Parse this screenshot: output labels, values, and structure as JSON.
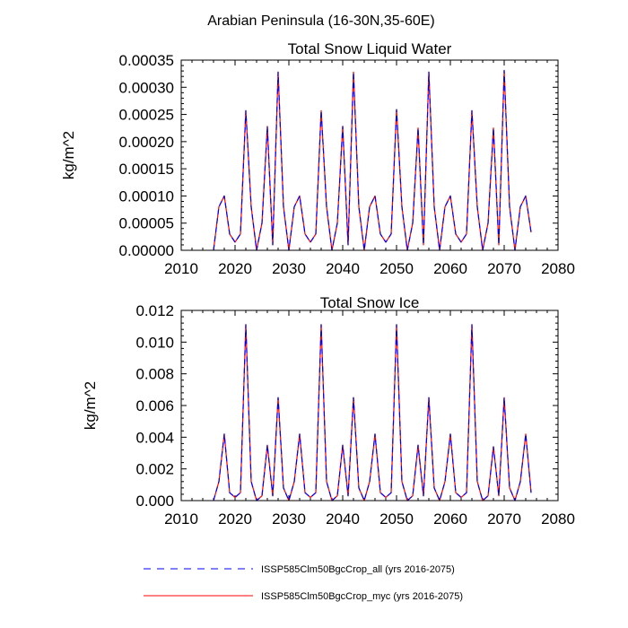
{
  "figure": {
    "suptitle": "Arabian Peninsula (16-30N,35-60E)"
  },
  "legend": {
    "placement": "bottom-center",
    "entries": [
      {
        "label": "ISSP585Clm50BgcCrop_all (yrs 2016-2075)",
        "color": "#0000ff",
        "style": "dashed"
      },
      {
        "label": "ISSP585Clm50BgcCrop_myc (yrs 2016-2075)",
        "color": "#ff0000",
        "style": "solid"
      }
    ]
  },
  "chart_data": [
    {
      "type": "line",
      "title": "Total Snow Liquid Water",
      "xlabel": "",
      "ylabel": "kg/m^2",
      "xlim": [
        2010,
        2080
      ],
      "ylim": [
        0,
        0.00035
      ],
      "xticks": [
        2010,
        2020,
        2030,
        2040,
        2050,
        2060,
        2070,
        2080
      ],
      "yticks": [
        0,
        5e-05,
        0.0001,
        0.00015,
        0.0002,
        0.00025,
        0.0003,
        0.00035
      ],
      "ytick_labels": [
        "0.00000",
        "0.00005",
        "0.00010",
        "0.00015",
        "0.00020",
        "0.00025",
        "0.00030",
        "0.00035"
      ],
      "grid": false,
      "x": [
        2016,
        2017,
        2018,
        2019,
        2020,
        2021,
        2022,
        2023,
        2024,
        2025,
        2026,
        2027,
        2028,
        2029,
        2030,
        2031,
        2032,
        2033,
        2034,
        2035,
        2036,
        2037,
        2038,
        2039,
        2040,
        2041,
        2042,
        2043,
        2044,
        2045,
        2046,
        2047,
        2048,
        2049,
        2050,
        2051,
        2052,
        2053,
        2054,
        2055,
        2056,
        2057,
        2058,
        2059,
        2060,
        2061,
        2062,
        2063,
        2064,
        2065,
        2066,
        2067,
        2068,
        2069,
        2070,
        2071,
        2072,
        2073,
        2074,
        2075
      ],
      "series": [
        {
          "name": "ISSP585Clm50BgcCrop_all (yrs 2016-2075)",
          "color": "#0000ff",
          "style": "dashed",
          "values": [
            0,
            8e-05,
            0.0001,
            3e-05,
            1.5e-05,
            3e-05,
            0.000257,
            8e-05,
            0,
            5e-05,
            0.000228,
            1e-05,
            0.000328,
            8e-05,
            0,
            8e-05,
            0.0001,
            3e-05,
            1.5e-05,
            3e-05,
            0.000257,
            8e-05,
            0,
            5e-05,
            0.000228,
            1e-05,
            0.000328,
            8e-05,
            0,
            8e-05,
            0.0001,
            3e-05,
            1.5e-05,
            3e-05,
            0.000259,
            8e-05,
            0,
            5e-05,
            0.000225,
            1e-05,
            0.000328,
            8e-05,
            0,
            8e-05,
            0.0001,
            3e-05,
            1.5e-05,
            3e-05,
            0.000257,
            8e-05,
            0,
            5e-05,
            0.000225,
            1e-05,
            0.000331,
            8e-05,
            0,
            8e-05,
            0.0001,
            3.3e-05
          ]
        },
        {
          "name": "ISSP585Clm50BgcCrop_myc (yrs 2016-2075)",
          "color": "#ff0000",
          "style": "solid",
          "values": [
            0,
            8e-05,
            0.0001,
            3e-05,
            1.5e-05,
            3e-05,
            0.000257,
            8e-05,
            0,
            5e-05,
            0.000228,
            1e-05,
            0.000328,
            8e-05,
            0,
            8e-05,
            0.0001,
            3e-05,
            1.5e-05,
            3e-05,
            0.000257,
            8e-05,
            0,
            5e-05,
            0.000228,
            1e-05,
            0.000328,
            8e-05,
            0,
            8e-05,
            0.0001,
            3e-05,
            1.5e-05,
            3e-05,
            0.000259,
            8e-05,
            0,
            5e-05,
            0.000225,
            1e-05,
            0.000328,
            8e-05,
            0,
            8e-05,
            0.0001,
            3e-05,
            1.5e-05,
            3e-05,
            0.000257,
            8e-05,
            0,
            5e-05,
            0.000225,
            1e-05,
            0.000331,
            8e-05,
            0,
            8e-05,
            0.0001,
            3.3e-05
          ]
        }
      ]
    },
    {
      "type": "line",
      "title": "Total Snow Ice",
      "xlabel": "",
      "ylabel": "kg/m^2",
      "xlim": [
        2010,
        2080
      ],
      "ylim": [
        0,
        0.012
      ],
      "xticks": [
        2010,
        2020,
        2030,
        2040,
        2050,
        2060,
        2070,
        2080
      ],
      "yticks": [
        0,
        0.002,
        0.004,
        0.006,
        0.008,
        0.01,
        0.012
      ],
      "ytick_labels": [
        "0.000",
        "0.002",
        "0.004",
        "0.006",
        "0.008",
        "0.010",
        "0.012"
      ],
      "grid": false,
      "x": [
        2016,
        2017,
        2018,
        2019,
        2020,
        2021,
        2022,
        2023,
        2024,
        2025,
        2026,
        2027,
        2028,
        2029,
        2030,
        2031,
        2032,
        2033,
        2034,
        2035,
        2036,
        2037,
        2038,
        2039,
        2040,
        2041,
        2042,
        2043,
        2044,
        2045,
        2046,
        2047,
        2048,
        2049,
        2050,
        2051,
        2052,
        2053,
        2054,
        2055,
        2056,
        2057,
        2058,
        2059,
        2060,
        2061,
        2062,
        2063,
        2064,
        2065,
        2066,
        2067,
        2068,
        2069,
        2070,
        2071,
        2072,
        2073,
        2074,
        2075
      ],
      "series": [
        {
          "name": "ISSP585Clm50BgcCrop_all (yrs 2016-2075)",
          "color": "#0000ff",
          "style": "dashed",
          "values": [
            0,
            0.0012,
            0.0042,
            0.0005,
            0.0002,
            0.0005,
            0.0111,
            0.0012,
            0,
            0.0003,
            0.0035,
            0.0003,
            0.0065,
            0.0008,
            0,
            0.0012,
            0.0042,
            0.0005,
            0.0002,
            0.0005,
            0.0111,
            0.0012,
            0,
            0.0003,
            0.0035,
            0.0003,
            0.0065,
            0.0008,
            0,
            0.0012,
            0.0042,
            0.0005,
            0.0002,
            0.0005,
            0.0111,
            0.0012,
            0,
            0.0003,
            0.0035,
            0.0003,
            0.0065,
            0.0008,
            0,
            0.0012,
            0.0042,
            0.0005,
            0.0002,
            0.0005,
            0.0111,
            0.0012,
            0,
            0.0003,
            0.0034,
            0.0003,
            0.0065,
            0.0008,
            0,
            0.0012,
            0.0042,
            0.0005
          ]
        },
        {
          "name": "ISSP585Clm50BgcCrop_myc (yrs 2016-2075)",
          "color": "#ff0000",
          "style": "solid",
          "values": [
            0,
            0.0012,
            0.0042,
            0.0005,
            0.0002,
            0.0005,
            0.0111,
            0.0012,
            0,
            0.0003,
            0.0035,
            0.0003,
            0.0065,
            0.0008,
            0,
            0.0012,
            0.0042,
            0.0005,
            0.0002,
            0.0005,
            0.0111,
            0.0012,
            0,
            0.0003,
            0.0035,
            0.0003,
            0.0065,
            0.0008,
            0,
            0.0012,
            0.0042,
            0.0005,
            0.0002,
            0.0005,
            0.0111,
            0.0012,
            0,
            0.0003,
            0.0035,
            0.0003,
            0.0065,
            0.0008,
            0,
            0.0012,
            0.0042,
            0.0005,
            0.0002,
            0.0005,
            0.0111,
            0.0012,
            0,
            0.0003,
            0.0034,
            0.0003,
            0.0065,
            0.0008,
            0,
            0.0012,
            0.0042,
            0.0005
          ]
        }
      ]
    }
  ]
}
